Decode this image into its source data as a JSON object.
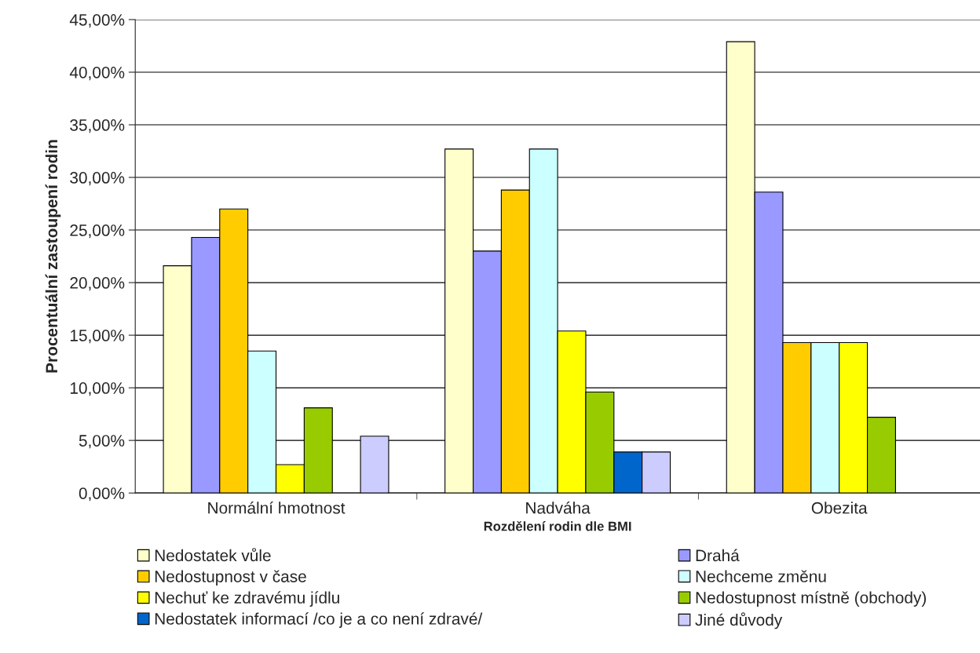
{
  "chart_data": {
    "type": "bar",
    "xlabel": "Rozdělení rodin dle BMI",
    "ylabel": "Procentuální zastoupení rodin",
    "categories": [
      "Normální hmotnost",
      "Nadváha",
      "Obezita"
    ],
    "series": [
      {
        "name": "Nedostatek vůle",
        "color": "#ffffcc",
        "values": [
          21.6,
          32.7,
          42.9
        ]
      },
      {
        "name": "Drahá",
        "color": "#9999ff",
        "values": [
          24.3,
          23.0,
          28.6
        ]
      },
      {
        "name": "Nedostupnost v čase",
        "color": "#ffcc00",
        "values": [
          27.0,
          28.8,
          14.3
        ]
      },
      {
        "name": "Nechceme změnu",
        "color": "#ccffff",
        "values": [
          13.5,
          32.7,
          14.3
        ]
      },
      {
        "name": "Nechuť ke zdravému jídlu",
        "color": "#ffff00",
        "values": [
          2.7,
          15.4,
          14.3
        ]
      },
      {
        "name": "Nedostupnost místně (obchody)",
        "color": "#99cc00",
        "values": [
          8.1,
          9.6,
          7.2
        ]
      },
      {
        "name": "Nedostatek informací /co je a co není zdravé/",
        "color": "#0066cc",
        "values": [
          null,
          3.9,
          null
        ]
      },
      {
        "name": "Jiné důvody",
        "color": "#ccccff",
        "values": [
          5.4,
          3.9,
          null
        ]
      }
    ],
    "ylim": [
      0,
      45
    ],
    "yticks": [
      {
        "value": 0,
        "label": "0,00%"
      },
      {
        "value": 5,
        "label": "5,00%"
      },
      {
        "value": 10,
        "label": "10,00%"
      },
      {
        "value": 15,
        "label": "15,00%"
      },
      {
        "value": 20,
        "label": "20,00%"
      },
      {
        "value": 25,
        "label": "25,00%"
      },
      {
        "value": 30,
        "label": "30,00%"
      },
      {
        "value": 35,
        "label": "35,00%"
      },
      {
        "value": 40,
        "label": "40,00%"
      },
      {
        "value": 45,
        "label": "45,00%"
      }
    ],
    "grid": "y",
    "legend": "bottom"
  }
}
